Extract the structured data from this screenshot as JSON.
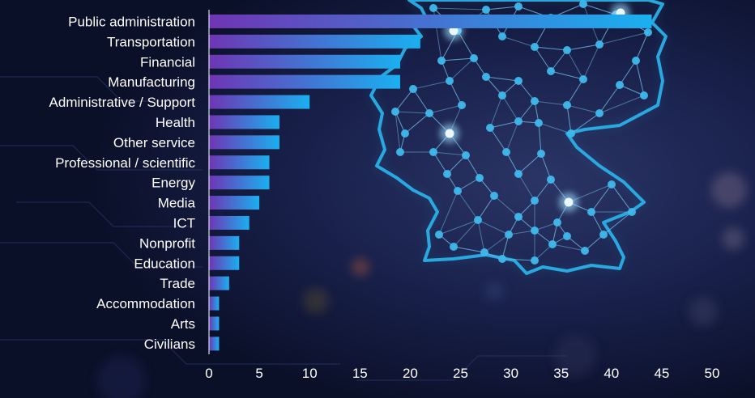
{
  "chart_data": {
    "type": "bar",
    "orientation": "horizontal",
    "title": "",
    "xlabel": "",
    "ylabel": "",
    "categories": [
      "Public administration",
      "Transportation",
      "Financial",
      "Manufacturing",
      "Administrative / Support",
      "Health",
      "Other service",
      "Professional / scientific",
      "Energy",
      "Media",
      "ICT",
      "Nonprofit",
      "Education",
      "Trade",
      "Accommodation",
      "Arts",
      "Civilians"
    ],
    "values": [
      44,
      21,
      19,
      19,
      10,
      7,
      7,
      6,
      6,
      5,
      4,
      3,
      3,
      2,
      1,
      1,
      1
    ],
    "xlim": [
      0,
      50
    ],
    "xticks": [
      "0",
      "5",
      "10",
      "15",
      "20",
      "25",
      "30",
      "35",
      "40",
      "45",
      "50"
    ],
    "grid": false,
    "legend": "none"
  },
  "colors": {
    "background": "#0c1230",
    "bar_start": "#6f35b4",
    "bar_end": "#1ab0f0",
    "text": "#ffffff",
    "map_line": "#2bb6ee",
    "map_node": "#3fb8ec",
    "map_glow": "#eaf7ff"
  },
  "background_icon": "germany-network-map-icon"
}
